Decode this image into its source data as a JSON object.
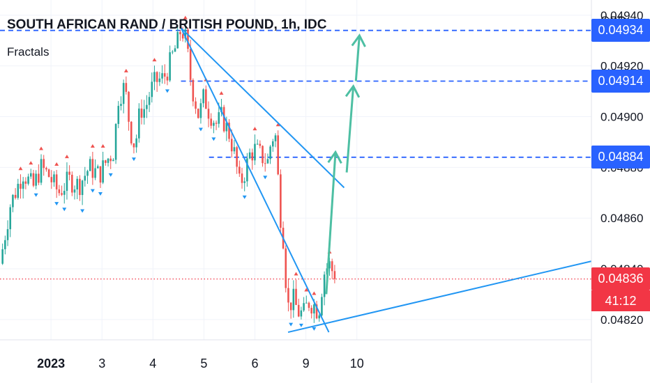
{
  "header": {
    "title": "SOUTH AFRICAN RAND / BRITISH POUND, 1h, IDC",
    "indicator": "Fractals",
    "currency": "GBP"
  },
  "price_labels": {
    "level_top": "0.04934",
    "level_mid": "0.04914",
    "level_low": "0.04884",
    "current": "0.04836",
    "countdown": "41:12"
  },
  "colors": {
    "up": "#26a69a",
    "down": "#ef5350",
    "trendline": "#2196f3",
    "projection": "#4dbfa3",
    "level": "#2962ff",
    "current": "#f23645"
  },
  "chart_data": {
    "type": "candlestick",
    "title": "SOUTH AFRICAN RAND / BRITISH POUND, 1h, IDC",
    "currency": "GBP",
    "y_tick_labels": [
      "0.04820",
      "0.04840",
      "0.04860",
      "0.04880",
      "0.04900",
      "0.04920",
      "0.04940"
    ],
    "y_range": [
      0.04812,
      0.04946
    ],
    "x_range": [
      -1.0,
      10.6
    ],
    "x_tick_labels": [
      {
        "x": 0,
        "label": "2023"
      },
      {
        "x": 1,
        "label": "3"
      },
      {
        "x": 2,
        "label": "4"
      },
      {
        "x": 3,
        "label": "5"
      },
      {
        "x": 4,
        "label": "6"
      },
      {
        "x": 5,
        "label": "9"
      },
      {
        "x": 6,
        "label": "10"
      }
    ],
    "anchors": [
      {
        "x": -0.95,
        "y": 0.04842
      },
      {
        "x": -0.75,
        "y": 0.04865
      },
      {
        "x": -0.5,
        "y": 0.04878
      },
      {
        "x": -0.3,
        "y": 0.04872
      },
      {
        "x": -0.15,
        "y": 0.0488
      },
      {
        "x": 0.0,
        "y": 0.04877
      },
      {
        "x": 0.2,
        "y": 0.0487
      },
      {
        "x": 0.4,
        "y": 0.04875
      },
      {
        "x": 0.6,
        "y": 0.04873
      },
      {
        "x": 0.8,
        "y": 0.0488
      },
      {
        "x": 1.0,
        "y": 0.04877
      },
      {
        "x": 1.15,
        "y": 0.04883
      },
      {
        "x": 1.3,
        "y": 0.04887
      },
      {
        "x": 1.35,
        "y": 0.04907
      },
      {
        "x": 1.5,
        "y": 0.04912
      },
      {
        "x": 1.6,
        "y": 0.04895
      },
      {
        "x": 1.7,
        "y": 0.04888
      },
      {
        "x": 1.8,
        "y": 0.04903
      },
      {
        "x": 1.9,
        "y": 0.04903
      },
      {
        "x": 2.0,
        "y": 0.0491
      },
      {
        "x": 2.1,
        "y": 0.04914
      },
      {
        "x": 2.25,
        "y": 0.04915
      },
      {
        "x": 2.35,
        "y": 0.04919
      },
      {
        "x": 2.45,
        "y": 0.04925
      },
      {
        "x": 2.55,
        "y": 0.0493
      },
      {
        "x": 2.6,
        "y": 0.04935
      },
      {
        "x": 2.7,
        "y": 0.0493
      },
      {
        "x": 2.8,
        "y": 0.04913
      },
      {
        "x": 2.95,
        "y": 0.049
      },
      {
        "x": 3.05,
        "y": 0.04908
      },
      {
        "x": 3.15,
        "y": 0.04902
      },
      {
        "x": 3.3,
        "y": 0.04897
      },
      {
        "x": 3.4,
        "y": 0.049
      },
      {
        "x": 3.55,
        "y": 0.04893
      },
      {
        "x": 3.65,
        "y": 0.04885
      },
      {
        "x": 3.75,
        "y": 0.04873
      },
      {
        "x": 3.85,
        "y": 0.04878
      },
      {
        "x": 3.95,
        "y": 0.04885
      },
      {
        "x": 4.05,
        "y": 0.04887
      },
      {
        "x": 4.2,
        "y": 0.04884
      },
      {
        "x": 4.3,
        "y": 0.04882
      },
      {
        "x": 4.38,
        "y": 0.04892
      },
      {
        "x": 4.48,
        "y": 0.04892
      },
      {
        "x": 4.52,
        "y": 0.04865
      },
      {
        "x": 4.6,
        "y": 0.04855
      },
      {
        "x": 4.62,
        "y": 0.04845
      },
      {
        "x": 4.7,
        "y": 0.04825
      },
      {
        "x": 4.8,
        "y": 0.04828
      },
      {
        "x": 4.9,
        "y": 0.04823
      },
      {
        "x": 5.0,
        "y": 0.04822
      },
      {
        "x": 5.1,
        "y": 0.04827
      },
      {
        "x": 5.2,
        "y": 0.04826
      },
      {
        "x": 5.3,
        "y": 0.04823
      },
      {
        "x": 5.4,
        "y": 0.04838
      },
      {
        "x": 5.5,
        "y": 0.04842
      },
      {
        "x": 5.6,
        "y": 0.04838
      }
    ],
    "levels": [
      {
        "label": "0.04934",
        "value": 0.04934,
        "x_from": -1.0
      },
      {
        "label": "0.04914",
        "value": 0.04914,
        "x_from": 2.55
      },
      {
        "label": "0.04884",
        "value": 0.04884,
        "x_from": 3.1
      }
    ],
    "current_price": 0.04836,
    "countdown": "41:12",
    "trendlines": [
      {
        "from": [
          2.55,
          0.04935
        ],
        "to": [
          5.75,
          0.04872
        ]
      },
      {
        "from": [
          2.55,
          0.04935
        ],
        "to": [
          5.45,
          0.04815
        ]
      },
      {
        "from": [
          4.65,
          0.04815
        ],
        "to": [
          10.6,
          0.04843
        ]
      }
    ],
    "projections": [
      {
        "from": [
          5.4,
          0.0483
        ],
        "to": [
          5.58,
          0.04886
        ]
      },
      {
        "from": [
          5.8,
          0.04878
        ],
        "to": [
          5.93,
          0.04912
        ]
      },
      {
        "from": [
          5.98,
          0.04914
        ],
        "to": [
          6.05,
          0.04932
        ]
      }
    ],
    "indicator": "Fractals"
  }
}
